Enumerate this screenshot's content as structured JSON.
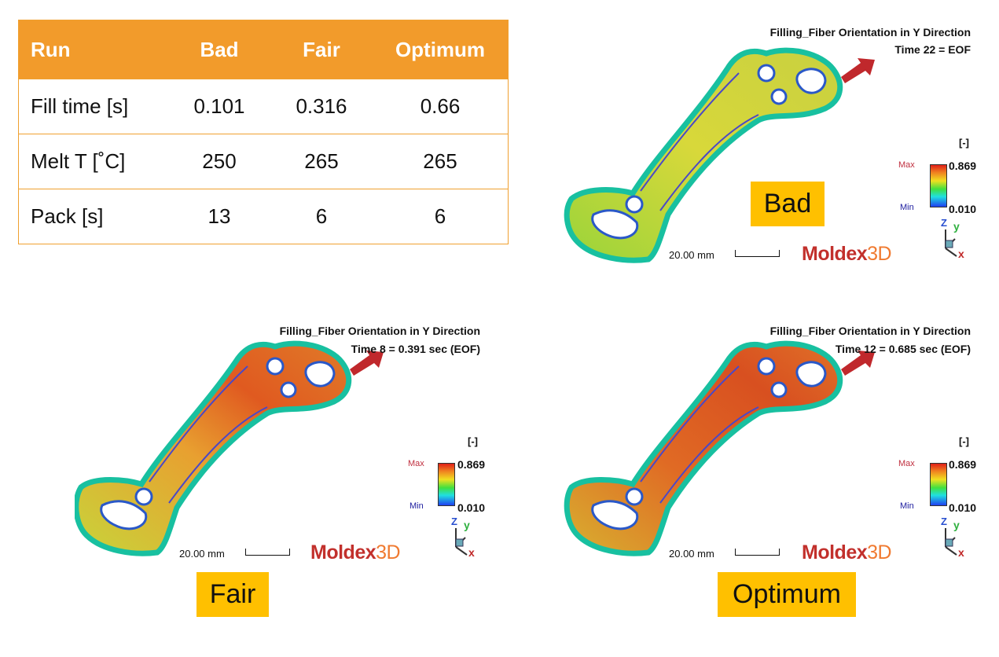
{
  "table": {
    "headers": [
      "Run",
      "Bad",
      "Fair",
      "Optimum"
    ],
    "rows": [
      [
        "Fill time [s]",
        "0.101",
        "0.316",
        "0.66"
      ],
      [
        "Melt T [˚C]",
        "250",
        "265",
        "265"
      ],
      [
        "Pack [s]",
        "13",
        "6",
        "6"
      ]
    ]
  },
  "panels": {
    "bad": {
      "title": "Filling_Fiber Orientation in Y Direction",
      "time": "Time 22 = EOF",
      "unit": "[-]",
      "max_label": "Max",
      "max_value": "0.869",
      "min_label": "Min",
      "min_value": "0.010",
      "scale": "20.00 mm",
      "brand": "Moldex",
      "brand_suffix": "3D",
      "tag": "Bad"
    },
    "fair": {
      "title": "Filling_Fiber Orientation in Y Direction",
      "time": "Time 8 = 0.391 sec (EOF)",
      "unit": "[-]",
      "max_label": "Max",
      "max_value": "0.869",
      "min_label": "Min",
      "min_value": "0.010",
      "scale": "20.00 mm",
      "brand": "Moldex",
      "brand_suffix": "3D",
      "tag": "Fair"
    },
    "optimum": {
      "title": "Filling_Fiber Orientation in Y Direction",
      "time": "Time 12 = 0.685 sec (EOF)",
      "unit": "[-]",
      "max_label": "Max",
      "max_value": "0.869",
      "min_label": "Min",
      "min_value": "0.010",
      "scale": "20.00 mm",
      "brand": "Moldex",
      "brand_suffix": "3D",
      "tag": "Optimum"
    }
  },
  "colors": {
    "table_header": "#f29b2b",
    "tag_background": "#ffc000",
    "brand_red": "#c2302c",
    "gate_arrow": "#c0282c"
  },
  "axis_triad": {
    "z": "Z",
    "y": "y",
    "x": "x"
  }
}
